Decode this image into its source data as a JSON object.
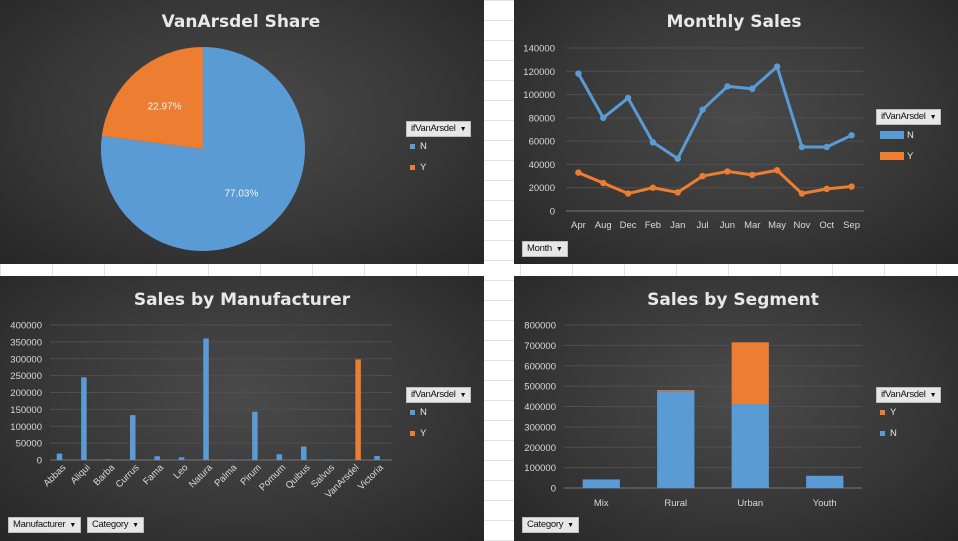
{
  "colors": {
    "N": "#5b9bd5",
    "Y": "#ed7d31"
  },
  "filter_label": "ifVanArsdel",
  "chart_data": [
    {
      "type": "pie",
      "title": "VanArsdel Share",
      "slices": [
        {
          "name": "N",
          "value": 77.03,
          "label": "77.03%"
        },
        {
          "name": "Y",
          "value": 22.97,
          "label": "22.97%"
        }
      ],
      "legend": [
        "N",
        "Y"
      ],
      "legend_position": "right"
    },
    {
      "type": "line",
      "title": "Monthly Sales",
      "categories": [
        "Apr",
        "Aug",
        "Dec",
        "Feb",
        "Jan",
        "Jul",
        "Jun",
        "Mar",
        "May",
        "Nov",
        "Oct",
        "Sep"
      ],
      "series": [
        {
          "name": "N",
          "values": [
            118000,
            80000,
            97000,
            59000,
            45000,
            87000,
            107000,
            105000,
            124000,
            55000,
            55000,
            65000
          ]
        },
        {
          "name": "Y",
          "values": [
            33000,
            24000,
            15000,
            20000,
            16000,
            30000,
            34000,
            31000,
            35000,
            15000,
            19000,
            21000
          ]
        }
      ],
      "yticks": [
        "0",
        "20000",
        "40000",
        "60000",
        "80000",
        "100000",
        "120000",
        "140000"
      ],
      "ylim": [
        0,
        140000
      ],
      "axis_button": "Month",
      "grid": true,
      "legend_position": "right"
    },
    {
      "type": "bar",
      "title": "Sales by Manufacturer",
      "categories": [
        "Abbas",
        "Aliqui",
        "Barba",
        "Currus",
        "Fama",
        "Leo",
        "Natura",
        "Palma",
        "Pirum",
        "Pomum",
        "Quibus",
        "Salvus",
        "VanArsdel",
        "Victoria"
      ],
      "series": [
        {
          "name": "N",
          "values": [
            19000,
            245000,
            2000,
            133000,
            11000,
            8000,
            360000,
            1500,
            143000,
            17000,
            40000,
            1500,
            0,
            12000
          ]
        },
        {
          "name": "Y",
          "values": [
            0,
            0,
            0,
            0,
            0,
            0,
            0,
            0,
            0,
            0,
            0,
            0,
            298000,
            0
          ]
        }
      ],
      "yticks": [
        "0",
        "50000",
        "100000",
        "150000",
        "200000",
        "250000",
        "300000",
        "350000",
        "400000"
      ],
      "ylim": [
        0,
        400000
      ],
      "axis_buttons": [
        "Manufacturer",
        "Category"
      ],
      "grid": true,
      "legend_position": "right"
    },
    {
      "type": "bar",
      "stacked": true,
      "title": "Sales by Segment",
      "categories": [
        "Mix",
        "Rural",
        "Urban",
        "Youth"
      ],
      "series": [
        {
          "name": "N",
          "values": [
            42000,
            475000,
            412000,
            60000
          ]
        },
        {
          "name": "Y",
          "values": [
            0,
            5000,
            303000,
            0
          ]
        }
      ],
      "yticks": [
        "0",
        "100000",
        "200000",
        "300000",
        "400000",
        "500000",
        "600000",
        "700000",
        "800000"
      ],
      "ylim": [
        0,
        800000
      ],
      "axis_button": "Category",
      "legend": [
        "Y",
        "N"
      ],
      "grid": true,
      "legend_position": "right"
    }
  ]
}
